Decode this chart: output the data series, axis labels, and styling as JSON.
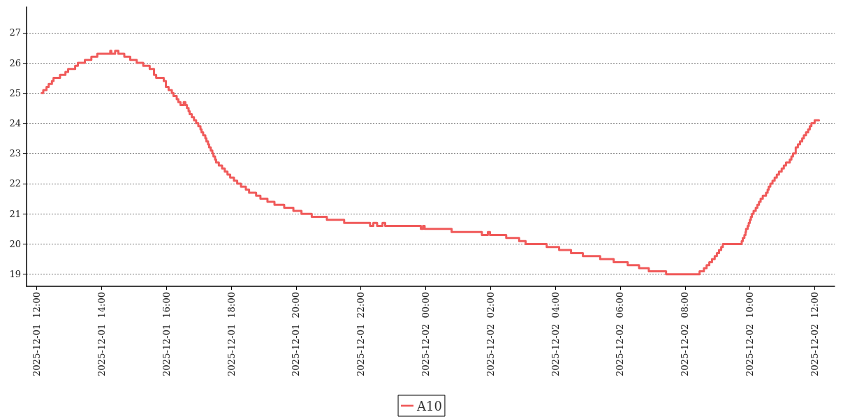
{
  "chart_data": {
    "type": "step",
    "legend": "bottom",
    "grid": "y",
    "marker": "none",
    "line_style": "solid",
    "xlim": [
      "2025-12-01T11:41",
      "2025-12-02T12:37"
    ],
    "xticks": [
      {
        "value": "2025-12-01T12:00",
        "label": "2025-12-01  12:00"
      },
      {
        "value": "2025-12-01T14:00",
        "label": "2025-12-01  14:00"
      },
      {
        "value": "2025-12-01T16:00",
        "label": "2025-12-01  16:00"
      },
      {
        "value": "2025-12-01T18:00",
        "label": "2025-12-01  18:00"
      },
      {
        "value": "2025-12-01T20:00",
        "label": "2025-12-01  20:00"
      },
      {
        "value": "2025-12-01T22:00",
        "label": "2025-12-01  22:00"
      },
      {
        "value": "2025-12-02T00:00",
        "label": "2025-12-02  00:00"
      },
      {
        "value": "2025-12-02T02:00",
        "label": "2025-12-02  02:00"
      },
      {
        "value": "2025-12-02T04:00",
        "label": "2025-12-02  04:00"
      },
      {
        "value": "2025-12-02T06:00",
        "label": "2025-12-02  06:00"
      },
      {
        "value": "2025-12-02T08:00",
        "label": "2025-12-02  08:00"
      },
      {
        "value": "2025-12-02T10:00",
        "label": "2025-12-02  10:00"
      },
      {
        "value": "2025-12-02T12:00",
        "label": "2025-12-02  12:00"
      }
    ],
    "ylim": [
      18.6,
      27.85
    ],
    "yticks": [
      19,
      20,
      21,
      22,
      23,
      24,
      25,
      26,
      27
    ],
    "series": [
      {
        "name": "A10",
        "color": "#f05a5a",
        "x": [
          "2025-12-01T12:09",
          "2025-12-01T12:12",
          "2025-12-01T12:18",
          "2025-12-01T12:22",
          "2025-12-01T12:28",
          "2025-12-01T12:31",
          "2025-12-01T12:43",
          "2025-12-01T12:53",
          "2025-12-01T12:58",
          "2025-12-01T13:11",
          "2025-12-01T13:16",
          "2025-12-01T13:29",
          "2025-12-01T13:41",
          "2025-12-01T13:52",
          "2025-12-01T14:16",
          "2025-12-01T14:18",
          "2025-12-01T14:25",
          "2025-12-01T14:31",
          "2025-12-01T14:42",
          "2025-12-01T14:53",
          "2025-12-01T15:05",
          "2025-12-01T15:17",
          "2025-12-01T15:29",
          "2025-12-01T15:37",
          "2025-12-01T15:41",
          "2025-12-01T15:55",
          "2025-12-01T15:59",
          "2025-12-01T16:04",
          "2025-12-01T16:10",
          "2025-12-01T16:13",
          "2025-12-01T16:19",
          "2025-12-01T16:22",
          "2025-12-01T16:26",
          "2025-12-01T16:32",
          "2025-12-01T16:35",
          "2025-12-01T16:38",
          "2025-12-01T16:41",
          "2025-12-01T16:43",
          "2025-12-01T16:47",
          "2025-12-01T16:51",
          "2025-12-01T16:55",
          "2025-12-01T16:59",
          "2025-12-01T17:03",
          "2025-12-01T17:05",
          "2025-12-01T17:08",
          "2025-12-01T17:12",
          "2025-12-01T17:14",
          "2025-12-01T17:17",
          "2025-12-01T17:19",
          "2025-12-01T17:22",
          "2025-12-01T17:25",
          "2025-12-01T17:27",
          "2025-12-01T17:30",
          "2025-12-01T17:32",
          "2025-12-01T17:37",
          "2025-12-01T17:43",
          "2025-12-01T17:48",
          "2025-12-01T17:53",
          "2025-12-01T17:58",
          "2025-12-01T18:05",
          "2025-12-01T18:11",
          "2025-12-01T18:18",
          "2025-12-01T18:27",
          "2025-12-01T18:33",
          "2025-12-01T18:46",
          "2025-12-01T18:54",
          "2025-12-01T19:07",
          "2025-12-01T19:20",
          "2025-12-01T19:38",
          "2025-12-01T19:55",
          "2025-12-01T20:10",
          "2025-12-01T20:29",
          "2025-12-01T20:57",
          "2025-12-01T21:29",
          "2025-12-01T22:17",
          "2025-12-01T22:23",
          "2025-12-01T22:30",
          "2025-12-01T22:40",
          "2025-12-01T22:45",
          "2025-12-01T23:51",
          "2025-12-01T23:55",
          "2025-12-01T23:58",
          "2025-12-02T00:48",
          "2025-12-02T01:44",
          "2025-12-02T01:55",
          "2025-12-02T01:59",
          "2025-12-02T02:29",
          "2025-12-02T02:53",
          "2025-12-02T03:05",
          "2025-12-02T03:44",
          "2025-12-02T04:07",
          "2025-12-02T04:29",
          "2025-12-02T04:51",
          "2025-12-02T05:23",
          "2025-12-02T05:48",
          "2025-12-02T06:14",
          "2025-12-02T06:35",
          "2025-12-02T06:53",
          "2025-12-02T07:25",
          "2025-12-02T08:27",
          "2025-12-02T08:35",
          "2025-12-02T08:40",
          "2025-12-02T08:45",
          "2025-12-02T08:50",
          "2025-12-02T08:55",
          "2025-12-02T08:59",
          "2025-12-02T09:03",
          "2025-12-02T09:07",
          "2025-12-02T09:10",
          "2025-12-02T09:45",
          "2025-12-02T09:47",
          "2025-12-02T09:50",
          "2025-12-02T09:52",
          "2025-12-02T09:53",
          "2025-12-02T09:56",
          "2025-12-02T09:58",
          "2025-12-02T10:00",
          "2025-12-02T10:02",
          "2025-12-02T10:04",
          "2025-12-02T10:07",
          "2025-12-02T10:11",
          "2025-12-02T10:14",
          "2025-12-02T10:17",
          "2025-12-02T10:20",
          "2025-12-02T10:24",
          "2025-12-02T10:30",
          "2025-12-02T10:33",
          "2025-12-02T10:35",
          "2025-12-02T10:38",
          "2025-12-02T10:42",
          "2025-12-02T10:46",
          "2025-12-02T10:50",
          "2025-12-02T10:54",
          "2025-12-02T10:59",
          "2025-12-02T11:03",
          "2025-12-02T11:07",
          "2025-12-02T11:14",
          "2025-12-02T11:17",
          "2025-12-02T11:20",
          "2025-12-02T11:25",
          "2025-12-02T11:29",
          "2025-12-02T11:33",
          "2025-12-02T11:37",
          "2025-12-02T11:40",
          "2025-12-02T11:44",
          "2025-12-02T11:48",
          "2025-12-02T11:51",
          "2025-12-02T11:54",
          "2025-12-02T12:00",
          "2025-12-02T12:08"
        ],
        "values": [
          25.0,
          25.1,
          25.2,
          25.3,
          25.4,
          25.5,
          25.6,
          25.7,
          25.8,
          25.9,
          26.0,
          26.1,
          26.2,
          26.3,
          26.4,
          26.3,
          26.4,
          26.3,
          26.2,
          26.1,
          26.0,
          25.9,
          25.8,
          25.6,
          25.5,
          25.4,
          25.2,
          25.1,
          25.0,
          24.9,
          24.8,
          24.7,
          24.6,
          24.7,
          24.6,
          24.5,
          24.4,
          24.3,
          24.2,
          24.1,
          24.0,
          23.9,
          23.8,
          23.7,
          23.6,
          23.5,
          23.4,
          23.3,
          23.2,
          23.1,
          23.0,
          22.9,
          22.8,
          22.7,
          22.6,
          22.5,
          22.4,
          22.3,
          22.2,
          22.1,
          22.0,
          21.9,
          21.8,
          21.7,
          21.6,
          21.5,
          21.4,
          21.3,
          21.2,
          21.1,
          21.0,
          20.9,
          20.8,
          20.7,
          20.6,
          20.7,
          20.6,
          20.7,
          20.6,
          20.5,
          20.6,
          20.5,
          20.4,
          20.3,
          20.4,
          20.3,
          20.2,
          20.1,
          20.0,
          19.9,
          19.8,
          19.7,
          19.6,
          19.5,
          19.4,
          19.3,
          19.2,
          19.1,
          19.0,
          19.1,
          19.2,
          19.3,
          19.4,
          19.5,
          19.6,
          19.7,
          19.8,
          19.9,
          20.0,
          20.1,
          20.2,
          20.3,
          20.4,
          20.5,
          20.6,
          20.7,
          20.8,
          20.9,
          21.0,
          21.1,
          21.2,
          21.3,
          21.4,
          21.5,
          21.6,
          21.7,
          21.8,
          21.9,
          22.0,
          22.1,
          22.2,
          22.3,
          22.4,
          22.5,
          22.6,
          22.7,
          22.8,
          22.9,
          23.0,
          23.2,
          23.3,
          23.4,
          23.5,
          23.6,
          23.7,
          23.8,
          23.9,
          24.0,
          24.1,
          24.1
        ]
      }
    ]
  }
}
